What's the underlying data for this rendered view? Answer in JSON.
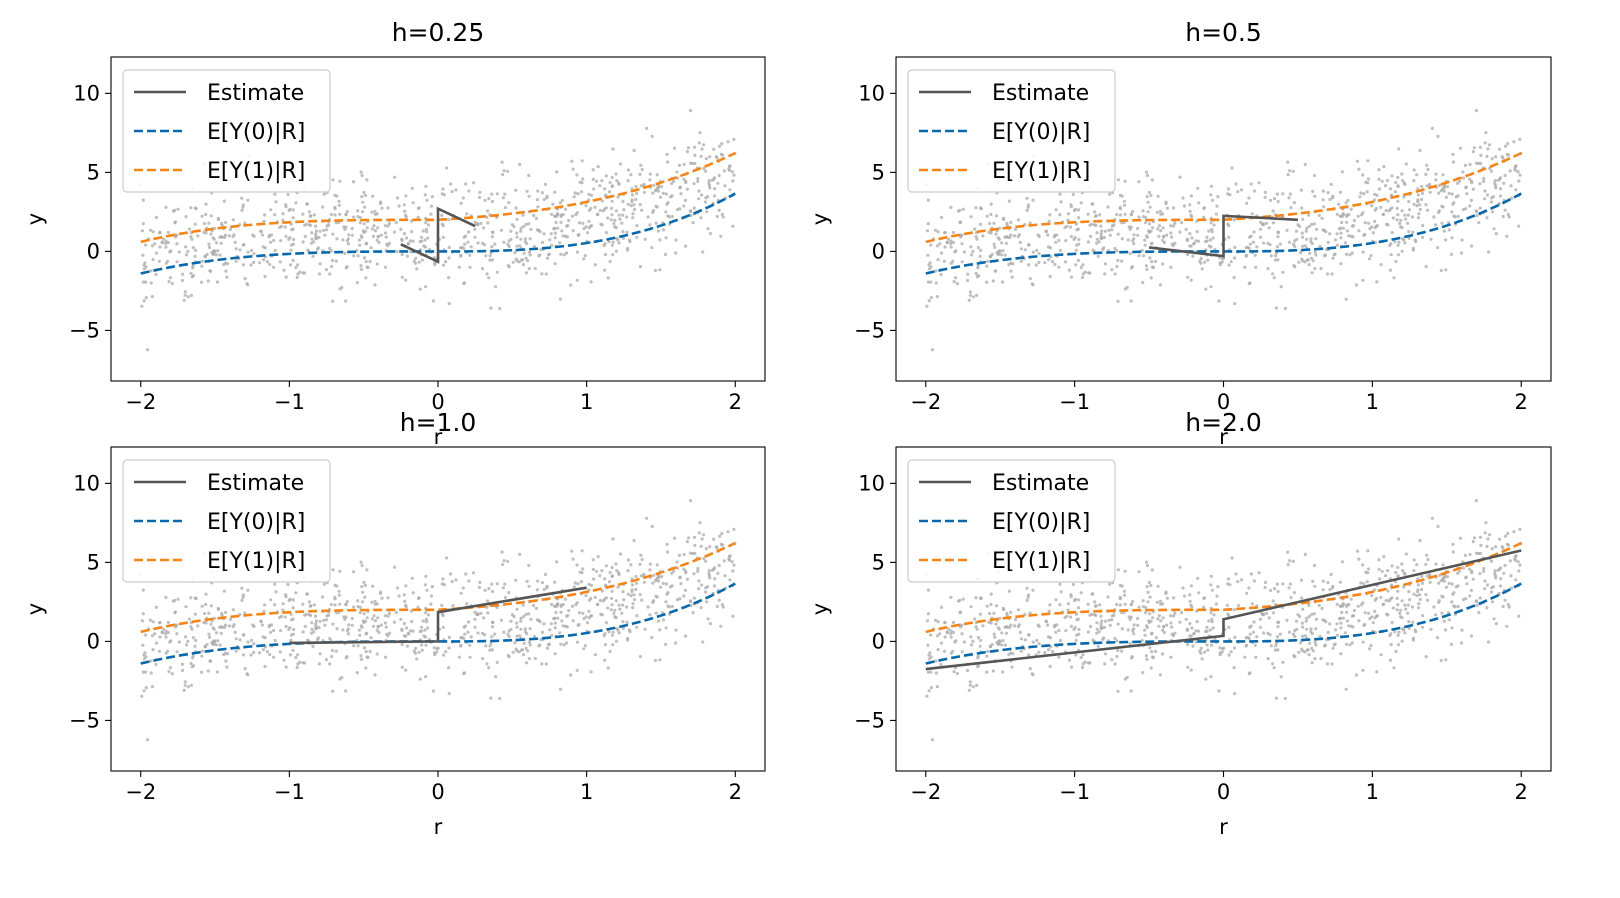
{
  "figure": {
    "background": "#ffffff"
  },
  "colors": {
    "scatter": "#aaaaaa",
    "estimate": "#555555",
    "ey0": "#0868ac",
    "ey1": "#f58518",
    "axis": "#000000",
    "legend_border": "#cccccc"
  },
  "chart_data": [
    {
      "type": "line",
      "title": "h=0.25",
      "xlabel": "r",
      "ylabel": "y",
      "xlim": [
        -2.2,
        2.2
      ],
      "ylim": [
        -8.2,
        12.3
      ],
      "xticks": [
        -2,
        -1,
        0,
        1,
        2
      ],
      "xtick_labels": [
        "−2",
        "−1",
        "0",
        "1",
        "2"
      ],
      "yticks": [
        -5,
        0,
        5,
        10
      ],
      "ytick_labels": [
        "−5",
        "0",
        "5",
        "10"
      ],
      "grid": false,
      "legend_position": "top-left",
      "legend": [
        "Estimate",
        "E[Y(0)|R]",
        "E[Y(1)|R]"
      ],
      "series": [
        {
          "name": "Estimate",
          "style": "solid",
          "segments": [
            {
              "x": [
                -0.25,
                0.0
              ],
              "y": [
                0.45,
                -0.65
              ]
            },
            {
              "x": [
                0.0,
                0.25
              ],
              "y": [
                2.7,
                1.6
              ]
            }
          ]
        },
        {
          "name": "E[Y(0)|R]",
          "style": "dashed",
          "function": "r^3/8*(1.1 - 0.15*r) for r<0; 0.36*r^3 + 0.22*r^2 - 0.05*r for r>=0"
        },
        {
          "name": "E[Y(1)|R]",
          "style": "dashed",
          "function": "E[Y(0)|R] + 2 for r<0; 2 + 0.55*r + 0.38*r^2 + 0.2*r^3 for r>=0"
        }
      ],
      "scatter": {
        "n": 1000,
        "r_range": [
          -2,
          2
        ],
        "y_range": [
          -7.5,
          11.2
        ],
        "note": "Grey noisy observations"
      }
    },
    {
      "type": "line",
      "title": "h=0.5",
      "xlabel": "r",
      "ylabel": "y",
      "xlim": [
        -2.2,
        2.2
      ],
      "ylim": [
        -8.2,
        12.3
      ],
      "xticks": [
        -2,
        -1,
        0,
        1,
        2
      ],
      "xtick_labels": [
        "−2",
        "−1",
        "0",
        "1",
        "2"
      ],
      "yticks": [
        -5,
        0,
        5,
        10
      ],
      "ytick_labels": [
        "−5",
        "0",
        "5",
        "10"
      ],
      "grid": false,
      "legend_position": "top-left",
      "legend": [
        "Estimate",
        "E[Y(0)|R]",
        "E[Y(1)|R]"
      ],
      "series": [
        {
          "name": "Estimate",
          "style": "solid",
          "segments": [
            {
              "x": [
                -0.5,
                0.0
              ],
              "y": [
                0.25,
                -0.3
              ]
            },
            {
              "x": [
                0.0,
                0.5
              ],
              "y": [
                2.25,
                2.0
              ]
            }
          ]
        },
        {
          "name": "E[Y(0)|R]",
          "style": "dashed",
          "function": "same as panel 1"
        },
        {
          "name": "E[Y(1)|R]",
          "style": "dashed",
          "function": "same as panel 1"
        }
      ]
    },
    {
      "type": "line",
      "title": "h=1.0",
      "xlabel": "r",
      "ylabel": "y",
      "xlim": [
        -2.2,
        2.2
      ],
      "ylim": [
        -8.2,
        12.3
      ],
      "xticks": [
        -2,
        -1,
        0,
        1,
        2
      ],
      "xtick_labels": [
        "−2",
        "−1",
        "0",
        "1",
        "2"
      ],
      "yticks": [
        -5,
        0,
        5,
        10
      ],
      "ytick_labels": [
        "−5",
        "0",
        "5",
        "10"
      ],
      "grid": false,
      "legend_position": "top-left",
      "legend": [
        "Estimate",
        "E[Y(0)|R]",
        "E[Y(1)|R]"
      ],
      "series": [
        {
          "name": "Estimate",
          "style": "solid",
          "segments": [
            {
              "x": [
                -1.0,
                0.0
              ],
              "y": [
                -0.1,
                0.0
              ]
            },
            {
              "x": [
                0.0,
                1.0
              ],
              "y": [
                1.85,
                3.4
              ]
            }
          ]
        },
        {
          "name": "E[Y(0)|R]",
          "style": "dashed",
          "function": "same as panel 1"
        },
        {
          "name": "E[Y(1)|R]",
          "style": "dashed",
          "function": "same as panel 1"
        }
      ]
    },
    {
      "type": "line",
      "title": "h=2.0",
      "xlabel": "r",
      "ylabel": "y",
      "xlim": [
        -2.2,
        2.2
      ],
      "ylim": [
        -8.2,
        12.3
      ],
      "xticks": [
        -2,
        -1,
        0,
        1,
        2
      ],
      "xtick_labels": [
        "−2",
        "−1",
        "0",
        "1",
        "2"
      ],
      "yticks": [
        -5,
        0,
        5,
        10
      ],
      "ytick_labels": [
        "−5",
        "0",
        "5",
        "10"
      ],
      "grid": false,
      "legend_position": "top-left",
      "legend": [
        "Estimate",
        "E[Y(0)|R]",
        "E[Y(1)|R]"
      ],
      "series": [
        {
          "name": "Estimate",
          "style": "solid",
          "segments": [
            {
              "x": [
                -2.0,
                0.0
              ],
              "y": [
                -1.75,
                0.35
              ]
            },
            {
              "x": [
                0.0,
                2.0
              ],
              "y": [
                1.4,
                5.75
              ]
            }
          ]
        },
        {
          "name": "E[Y(0)|R]",
          "style": "dashed",
          "function": "same as panel 1"
        },
        {
          "name": "E[Y(1)|R]",
          "style": "dashed",
          "function": "same as panel 1"
        }
      ]
    }
  ]
}
